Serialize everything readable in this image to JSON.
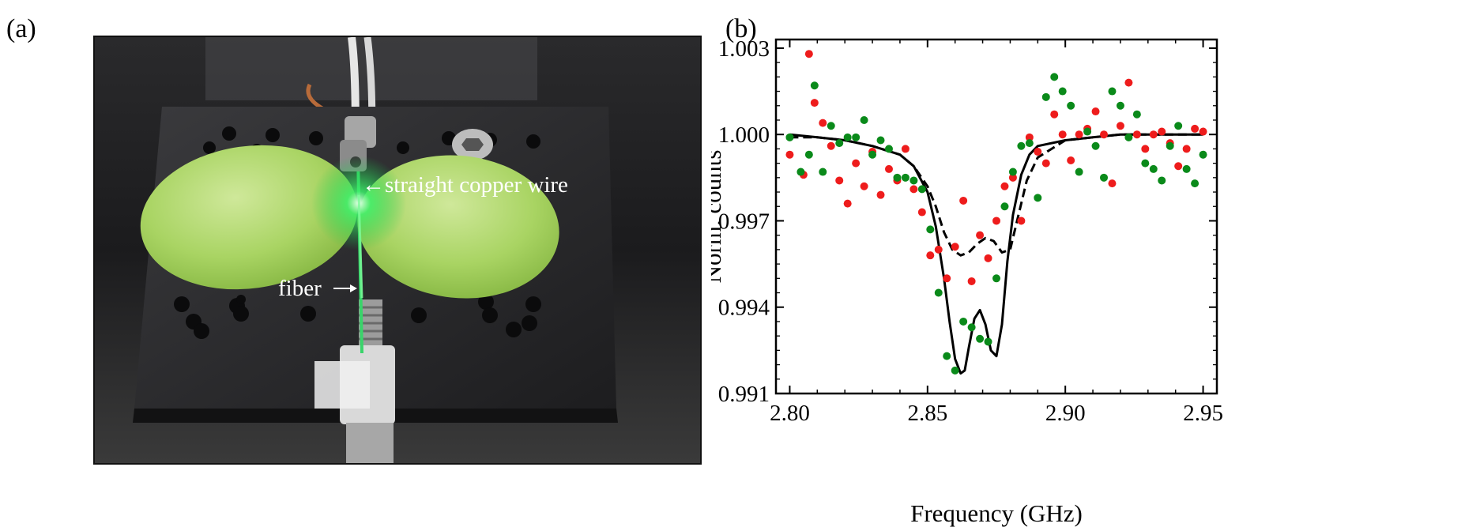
{
  "figure": {
    "panel_a_label": "(a)",
    "panel_b_label": "(b)"
  },
  "photo": {
    "annotations": {
      "wire": "←straight copper wire",
      "fiber": "fiber"
    }
  },
  "colors": {
    "red_points": "#ee1c1c",
    "green_points": "#0a8a1a",
    "fit_lines": "#000000"
  },
  "chart_data": {
    "type": "scatter",
    "xlabel": "Frequency (GHz)",
    "ylabel": "Norm. counts",
    "xlim": [
      2.795,
      2.955
    ],
    "ylim": [
      0.991,
      1.0033
    ],
    "xticks": [
      2.8,
      2.85,
      2.9,
      2.95
    ],
    "xtick_labels": [
      "2.80",
      "2.85",
      "2.90",
      "2.95"
    ],
    "yticks": [
      0.991,
      0.994,
      0.997,
      1.0,
      1.003
    ],
    "ytick_labels": [
      "0.991",
      "0.994",
      "0.997",
      "1.000",
      "1.003"
    ],
    "grid": false,
    "legend": "none",
    "series": [
      {
        "color": "red",
        "marker": "circle",
        "x": [
          2.8,
          2.805,
          2.807,
          2.809,
          2.812,
          2.815,
          2.818,
          2.821,
          2.824,
          2.827,
          2.83,
          2.833,
          2.836,
          2.839,
          2.842,
          2.845,
          2.848,
          2.851,
          2.854,
          2.857,
          2.86,
          2.863,
          2.866,
          2.869,
          2.872,
          2.875,
          2.878,
          2.881,
          2.884,
          2.887,
          2.89,
          2.893,
          2.896,
          2.899,
          2.902,
          2.905,
          2.908,
          2.911,
          2.914,
          2.917,
          2.92,
          2.923,
          2.926,
          2.929,
          2.932,
          2.935,
          2.938,
          2.941,
          2.944,
          2.947,
          2.95
        ],
        "y": [
          0.9993,
          0.9986,
          1.0028,
          1.0011,
          1.0004,
          0.9996,
          0.9984,
          0.9976,
          0.999,
          0.9982,
          0.9994,
          0.9979,
          0.9988,
          0.9984,
          0.9995,
          0.9981,
          0.9973,
          0.9958,
          0.996,
          0.995,
          0.9961,
          0.9977,
          0.9949,
          0.9965,
          0.9957,
          0.997,
          0.9982,
          0.9985,
          0.997,
          0.9999,
          0.9994,
          0.999,
          1.0007,
          1.0,
          0.9991,
          1.0,
          1.0002,
          1.0008,
          1.0,
          0.9983,
          1.0003,
          1.0018,
          1.0,
          0.9995,
          1.0,
          1.0001,
          0.9997,
          0.9989,
          0.9995,
          1.0002,
          1.0001
        ]
      },
      {
        "color": "green",
        "marker": "circle",
        "x": [
          2.8,
          2.804,
          2.807,
          2.809,
          2.812,
          2.815,
          2.818,
          2.821,
          2.824,
          2.827,
          2.83,
          2.833,
          2.836,
          2.839,
          2.842,
          2.845,
          2.848,
          2.851,
          2.854,
          2.857,
          2.86,
          2.863,
          2.866,
          2.869,
          2.872,
          2.875,
          2.878,
          2.881,
          2.884,
          2.887,
          2.89,
          2.893,
          2.896,
          2.899,
          2.902,
          2.905,
          2.908,
          2.911,
          2.914,
          2.917,
          2.92,
          2.923,
          2.926,
          2.929,
          2.932,
          2.935,
          2.938,
          2.941,
          2.944,
          2.947,
          2.95
        ],
        "y": [
          0.9999,
          0.9987,
          0.9993,
          1.0017,
          0.9987,
          1.0003,
          0.9997,
          0.9999,
          0.9999,
          1.0005,
          0.9993,
          0.9998,
          0.9995,
          0.9985,
          0.9985,
          0.9984,
          0.9981,
          0.9967,
          0.9945,
          0.9923,
          0.9918,
          0.9935,
          0.9933,
          0.9929,
          0.9928,
          0.995,
          0.9975,
          0.9987,
          0.9996,
          0.9997,
          0.9978,
          1.0013,
          1.002,
          1.0015,
          1.001,
          0.9987,
          1.0001,
          0.9996,
          0.9985,
          1.0015,
          1.001,
          0.9999,
          1.0007,
          0.999,
          0.9988,
          0.9984,
          0.9996,
          1.0003,
          0.9988,
          0.9983,
          0.9993
        ]
      },
      {
        "color": "black",
        "style": "solid",
        "line": true,
        "x": [
          2.8,
          2.81,
          2.82,
          2.83,
          2.84,
          2.845,
          2.85,
          2.853,
          2.856,
          2.858,
          2.86,
          2.862,
          2.8635,
          2.865,
          2.867,
          2.869,
          2.871,
          2.873,
          2.875,
          2.877,
          2.879,
          2.881,
          2.884,
          2.887,
          2.89,
          2.9,
          2.91,
          2.92,
          2.93,
          2.94,
          2.95
        ],
        "y": [
          1.0,
          0.9999,
          0.9998,
          0.9996,
          0.9993,
          0.9989,
          0.998,
          0.9968,
          0.995,
          0.9935,
          0.9922,
          0.9917,
          0.9918,
          0.9926,
          0.9936,
          0.9939,
          0.9934,
          0.9925,
          0.9923,
          0.9934,
          0.9956,
          0.9972,
          0.9986,
          0.9993,
          0.9996,
          0.9998,
          0.9999,
          1.0,
          1.0,
          1.0,
          1.0
        ]
      },
      {
        "color": "black",
        "style": "dashed",
        "line": true,
        "x": [
          2.8,
          2.81,
          2.82,
          2.83,
          2.84,
          2.845,
          2.85,
          2.853,
          2.856,
          2.859,
          2.862,
          2.865,
          2.868,
          2.871,
          2.874,
          2.877,
          2.88,
          2.883,
          2.886,
          2.89,
          2.9,
          2.91,
          2.92,
          2.93,
          2.94,
          2.95
        ],
        "y": [
          0.9999,
          0.9999,
          0.9998,
          0.9996,
          0.9993,
          0.9989,
          0.9982,
          0.9975,
          0.9966,
          0.996,
          0.9958,
          0.9959,
          0.9962,
          0.9964,
          0.9963,
          0.9959,
          0.996,
          0.9972,
          0.9984,
          0.9992,
          0.9998,
          0.9999,
          1.0,
          1.0,
          1.0,
          1.0
        ]
      }
    ]
  }
}
